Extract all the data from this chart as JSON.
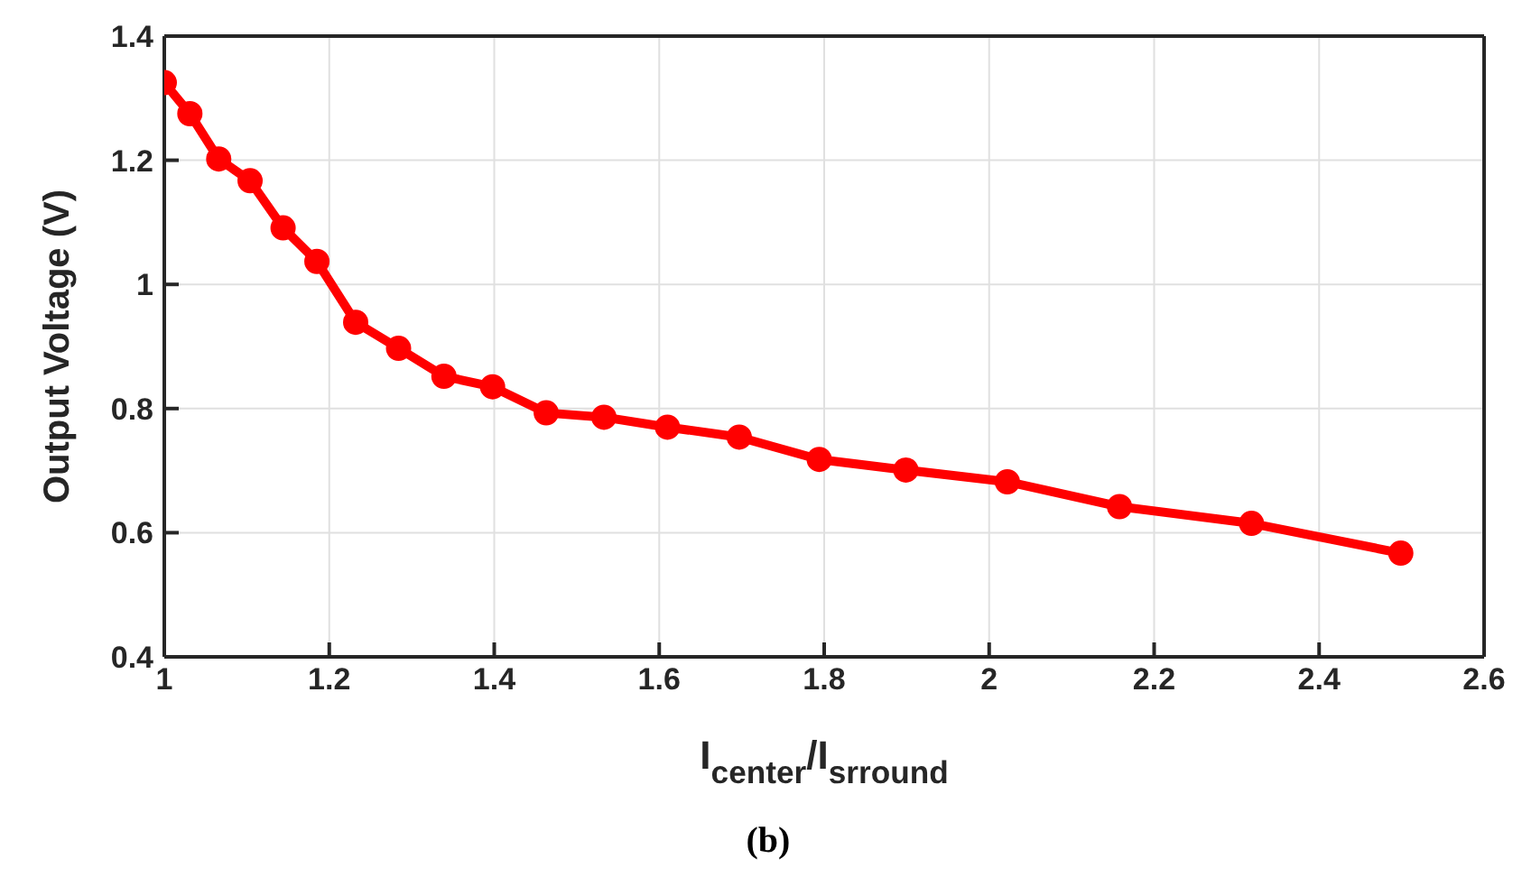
{
  "chart_data": {
    "type": "line",
    "xlabel": "I$_{center}$/I$_{srround}$",
    "ylabel": "Output Voltage (V)",
    "annotations": [
      "(b)"
    ],
    "x": [
      1.0,
      1.031,
      1.066,
      1.104,
      1.144,
      1.185,
      1.232,
      1.284,
      1.339,
      1.398,
      1.463,
      1.533,
      1.61,
      1.697,
      1.794,
      1.899,
      2.022,
      2.158,
      2.318,
      2.499
    ],
    "series": [
      {
        "color": "#ff0000",
        "values": [
          1.325,
          1.275,
          1.202,
          1.167,
          1.091,
          1.037,
          0.939,
          0.897,
          0.852,
          0.835,
          0.793,
          0.786,
          0.77,
          0.754,
          0.718,
          0.701,
          0.682,
          0.642,
          0.615,
          0.567
        ]
      }
    ],
    "xlim": [
      1,
      2.6
    ],
    "xticks": [
      1,
      1.2,
      1.4,
      1.6,
      1.8,
      2,
      2.2,
      2.4,
      2.6
    ],
    "ylim": [
      0.4,
      1.4
    ],
    "yticks": [
      0.4,
      0.6,
      0.8,
      1,
      1.2,
      1.4
    ],
    "grid": true,
    "marker": "circle",
    "line_style": "solid",
    "legend": false
  }
}
